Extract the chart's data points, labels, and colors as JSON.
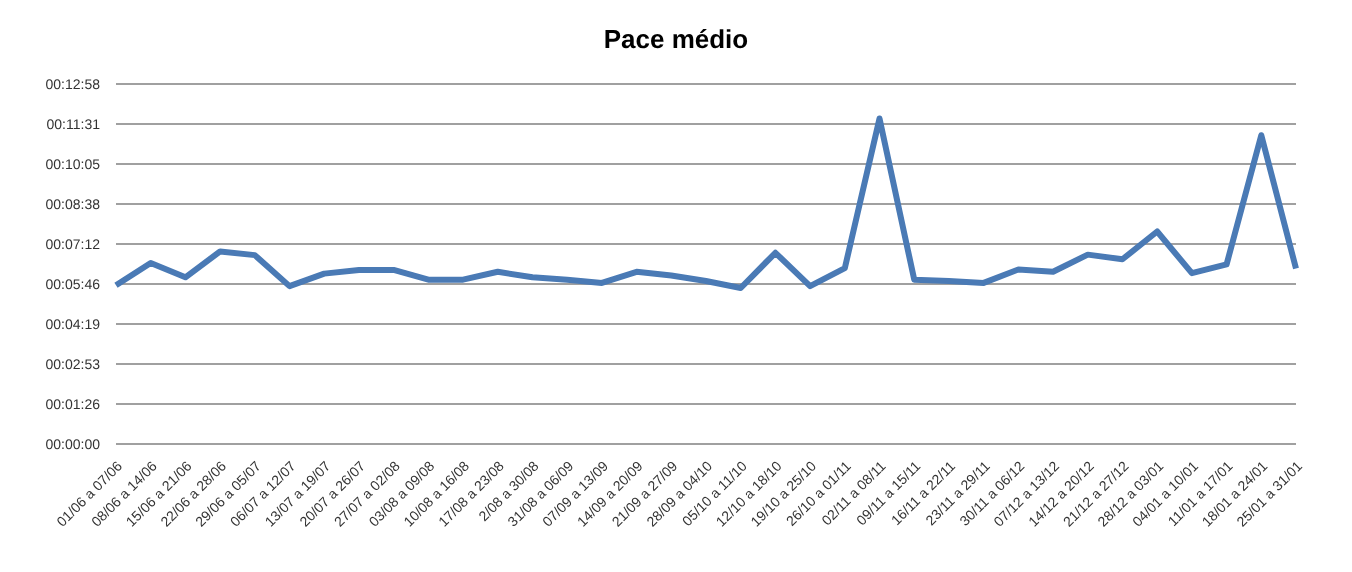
{
  "chart_data": {
    "type": "line",
    "title": "Pace médio",
    "categories": [
      "01/06 a 07/06",
      "08/06 a 14/06",
      "15/06 a 21/06",
      "22/06 a 28/06",
      "29/06 a 05/07",
      "06/07 a 12/07",
      "13/07 a 19/07",
      "20/07 a 26/07",
      "27/07 a 02/08",
      "03/08 a 09/08",
      "10/08 a 16/08",
      "17/08 a 23/08",
      "2/08 a 30/08",
      "31/08 a 06/09",
      "07/09 a 13/09",
      "14/09 a 20/09",
      "21/09 a 27/09",
      "28/09 a 04/10",
      "05/10 a 11/10",
      "12/10 a 18/10",
      "19/10 a 25/10",
      "26/10 a 01/11",
      "02/11 a 08/11",
      "09/11 a 15/11",
      "16/11 a 22/11",
      "23/11 a 29/11",
      "30/11 a 06/12",
      "07/12 a 13/12",
      "14/12 a 20/12",
      "21/12 a 27/12",
      "28/12 a 03/01",
      "04/01 a 10/01",
      "11/01 a 17/01",
      "18/01 a 24/01",
      "25/01 a 31/01"
    ],
    "series": [
      {
        "color": "#4a7ab5",
        "values": [
          343,
          391,
          360,
          416,
          408,
          341,
          368,
          376,
          376,
          355,
          355,
          372,
          360,
          355,
          348,
          372,
          364,
          352,
          337,
          413,
          341,
          380,
          703,
          355,
          352,
          348,
          377,
          372,
          409,
          399,
          459,
          369,
          388,
          667,
          379
        ]
      }
    ],
    "ylim": [
      0,
      777.6
    ],
    "yticks": [
      {
        "value": 0,
        "label": "00:00:00"
      },
      {
        "value": 86.4,
        "label": "00:01:26"
      },
      {
        "value": 172.8,
        "label": "00:02:53"
      },
      {
        "value": 259.2,
        "label": "00:04:19"
      },
      {
        "value": 345.6,
        "label": "00:05:46"
      },
      {
        "value": 432,
        "label": "00:07:12"
      },
      {
        "value": 518.4,
        "label": "00:08:38"
      },
      {
        "value": 604.8,
        "label": "00:10:05"
      },
      {
        "value": 691.2,
        "label": "00:11:31"
      },
      {
        "value": 777.6,
        "label": "00:12:58"
      }
    ],
    "grid": "y",
    "legend": false,
    "marker": "none",
    "line_style": "solid"
  }
}
